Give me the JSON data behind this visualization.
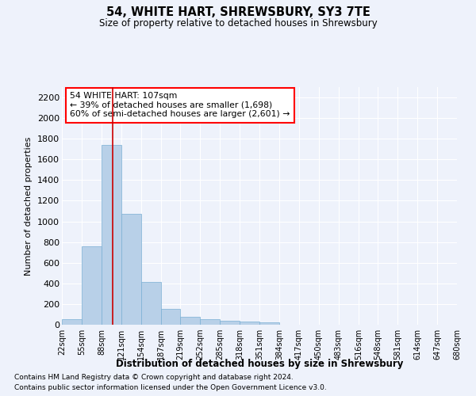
{
  "title": "54, WHITE HART, SHREWSBURY, SY3 7TE",
  "subtitle": "Size of property relative to detached houses in Shrewsbury",
  "xlabel": "Distribution of detached houses by size in Shrewsbury",
  "ylabel": "Number of detached properties",
  "footer_line1": "Contains HM Land Registry data © Crown copyright and database right 2024.",
  "footer_line2": "Contains public sector information licensed under the Open Government Licence v3.0.",
  "annotation_line1": "54 WHITE HART: 107sqm",
  "annotation_line2": "← 39% of detached houses are smaller (1,698)",
  "annotation_line3": "60% of semi-detached houses are larger (2,601) →",
  "bar_color": "#b8d0e8",
  "bar_edgecolor": "#7aafd4",
  "vline_color": "#cc0000",
  "vline_x": 107,
  "background_color": "#eef2fb",
  "ylim": [
    0,
    2300
  ],
  "bin_edges": [
    22,
    55,
    88,
    121,
    154,
    187,
    219,
    252,
    285,
    318,
    351,
    384,
    417,
    450,
    483,
    516,
    548,
    581,
    614,
    647,
    680
  ],
  "bar_heights": [
    55,
    760,
    1740,
    1075,
    415,
    155,
    80,
    50,
    40,
    30,
    25,
    0,
    0,
    0,
    0,
    0,
    0,
    0,
    0,
    0
  ],
  "tick_labels": [
    "22sqm",
    "55sqm",
    "88sqm",
    "121sqm",
    "154sqm",
    "187sqm",
    "219sqm",
    "252sqm",
    "285sqm",
    "318sqm",
    "351sqm",
    "384sqm",
    "417sqm",
    "450sqm",
    "483sqm",
    "516sqm",
    "548sqm",
    "581sqm",
    "614sqm",
    "647sqm",
    "680sqm"
  ],
  "yticks": [
    0,
    200,
    400,
    600,
    800,
    1000,
    1200,
    1400,
    1600,
    1800,
    2000,
    2200
  ]
}
